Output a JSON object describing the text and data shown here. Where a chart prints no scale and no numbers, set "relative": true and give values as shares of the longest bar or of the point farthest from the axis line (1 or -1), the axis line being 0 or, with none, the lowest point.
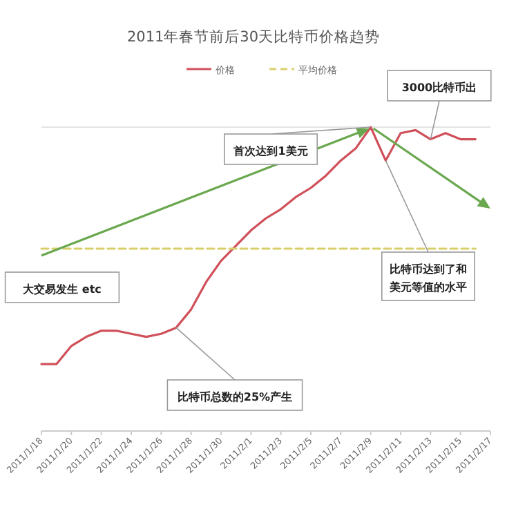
{
  "chart_data": {
    "type": "line",
    "title": "2011年春节前后30天比特币价格趋势",
    "relative": true,
    "legend": "top",
    "marker": "none",
    "x": [
      "2011-01-18",
      "2011-01-19",
      "2011-01-20",
      "2011-01-21",
      "2011-01-22",
      "2011-01-23",
      "2011-01-24",
      "2011-01-25",
      "2011-01-26",
      "2011-01-27",
      "2011-01-28",
      "2011-01-29",
      "2011-01-30",
      "2011-01-31",
      "2011-02-01",
      "2011-02-02",
      "2011-02-03",
      "2011-02-04",
      "2011-02-05",
      "2011-02-06",
      "2011-02-07",
      "2011-02-08",
      "2011-02-09",
      "2011-02-10",
      "2011-02-11",
      "2011-02-12",
      "2011-02-13",
      "2011-02-14",
      "2011-02-15",
      "2011-02-16"
    ],
    "xlim": [
      "2011-01-18",
      "2011-02-17"
    ],
    "xticks": [
      {
        "value": "2011-01-18",
        "label": "2011/1/18"
      },
      {
        "value": "2011-01-20",
        "label": "2011/1/20"
      },
      {
        "value": "2011-01-22",
        "label": "2011/1/22"
      },
      {
        "value": "2011-01-24",
        "label": "2011/1/24"
      },
      {
        "value": "2011-01-26",
        "label": "2011/1/26"
      },
      {
        "value": "2011-01-28",
        "label": "2011/1/28"
      },
      {
        "value": "2011-01-30",
        "label": "2011/1/30"
      },
      {
        "value": "2011-02-01",
        "label": "2011/2/1"
      },
      {
        "value": "2011-02-03",
        "label": "2011/2/3"
      },
      {
        "value": "2011-02-05",
        "label": "2011/2/5"
      },
      {
        "value": "2011-02-07",
        "label": "2011/2/7"
      },
      {
        "value": "2011-02-09",
        "label": "2011/2/9"
      },
      {
        "value": "2011-02-11",
        "label": "2011/2/11"
      },
      {
        "value": "2011-02-13",
        "label": "2011/2/13"
      },
      {
        "value": "2011-02-15",
        "label": "2011/2/15"
      },
      {
        "value": "2011-02-17",
        "label": "2011/2/17"
      }
    ],
    "series": [
      {
        "name": "价格",
        "color": "#d0505a",
        "line_style": "solid",
        "values": [
          0.22,
          0.22,
          0.28,
          0.31,
          0.33,
          0.33,
          0.32,
          0.31,
          0.32,
          0.34,
          0.4,
          0.49,
          0.56,
          0.61,
          0.66,
          0.7,
          0.73,
          0.77,
          0.8,
          0.84,
          0.89,
          0.93,
          1.0,
          0.89,
          0.98,
          0.99,
          0.96,
          0.98,
          0.96,
          0.96
        ]
      },
      {
        "name": "平均价格",
        "color": "#d9cf6a",
        "line_style": "dashed",
        "x": [
          "2011-01-18",
          "2011-02-16"
        ],
        "values": [
          0.6,
          0.6
        ]
      }
    ],
    "annotations": [
      {
        "text": "首次达到1美元",
        "x": "2011-02-09",
        "y": 1.0
      },
      {
        "text": "3000比特币出",
        "x": "2011-02-13",
        "y": 0.96
      },
      {
        "text": "比特币总数的25%产生",
        "x": "2011-01-27",
        "y": 0.34
      },
      "大交易发生 etc",
      {
        "text": "比特币达到了和美元等值的水平",
        "x": "2011-02-10",
        "y": 0.89
      }
    ]
  }
}
